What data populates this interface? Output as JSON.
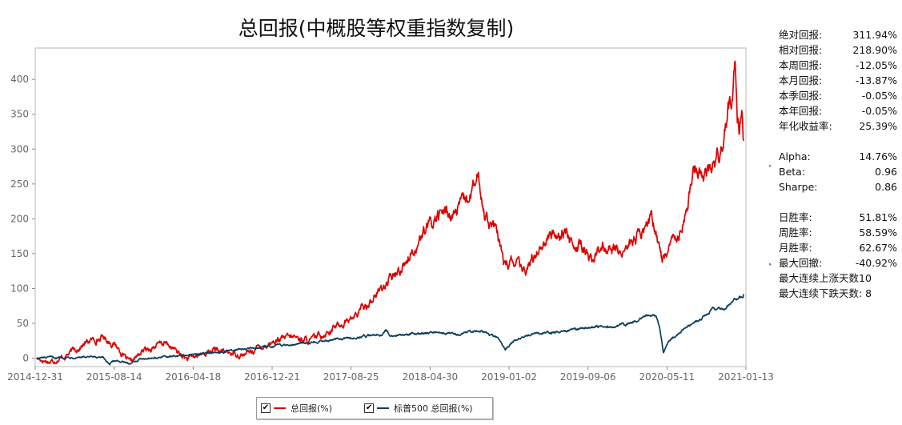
{
  "chart_data": {
    "type": "line",
    "title": "总回报(中概股等权重指数复制)",
    "xlabel": "",
    "ylabel": "",
    "ylim": [
      -12,
      445
    ],
    "yticks": [
      0,
      50,
      100,
      150,
      200,
      250,
      300,
      350,
      400
    ],
    "xticks": [
      "2014-12-31",
      "2015-08-14",
      "2016-04-18",
      "2016-12-21",
      "2017-08-25",
      "2018-04-30",
      "2019-01-02",
      "2019-09-06",
      "2020-05-11",
      "2021-01-13"
    ],
    "grid": false,
    "legend_position": "bottom-center",
    "n_points": 1600,
    "series": [
      {
        "name": "总回报(%)",
        "color": "#dd0000",
        "anchors": [
          [
            0,
            0
          ],
          [
            30,
            -5
          ],
          [
            60,
            2
          ],
          [
            120,
            25
          ],
          [
            150,
            30
          ],
          [
            180,
            18
          ],
          [
            195,
            5
          ],
          [
            210,
            -8
          ],
          [
            240,
            10
          ],
          [
            270,
            18
          ],
          [
            290,
            22
          ],
          [
            320,
            8
          ],
          [
            340,
            -2
          ],
          [
            370,
            5
          ],
          [
            400,
            12
          ],
          [
            430,
            8
          ],
          [
            470,
            5
          ],
          [
            500,
            15
          ],
          [
            540,
            25
          ],
          [
            580,
            30
          ],
          [
            620,
            25
          ],
          [
            660,
            40
          ],
          [
            720,
            60
          ],
          [
            780,
            100
          ],
          [
            820,
            125
          ],
          [
            860,
            165
          ],
          [
            900,
            200
          ],
          [
            920,
            210
          ],
          [
            940,
            205
          ],
          [
            960,
            215
          ],
          [
            985,
            240
          ],
          [
            1000,
            255
          ],
          [
            1010,
            215
          ],
          [
            1040,
            180
          ],
          [
            1060,
            130
          ],
          [
            1085,
            140
          ],
          [
            1100,
            120
          ],
          [
            1120,
            140
          ],
          [
            1140,
            165
          ],
          [
            1170,
            180
          ],
          [
            1200,
            185
          ],
          [
            1215,
            150
          ],
          [
            1230,
            160
          ],
          [
            1260,
            140
          ],
          [
            1280,
            165
          ],
          [
            1300,
            155
          ],
          [
            1320,
            150
          ],
          [
            1350,
            170
          ],
          [
            1370,
            180
          ],
          [
            1390,
            200
          ],
          [
            1405,
            170
          ],
          [
            1415,
            140
          ],
          [
            1430,
            160
          ],
          [
            1450,
            180
          ],
          [
            1470,
            215
          ],
          [
            1490,
            275
          ],
          [
            1510,
            265
          ],
          [
            1530,
            275
          ],
          [
            1550,
            305
          ],
          [
            1565,
            355
          ],
          [
            1575,
            375
          ],
          [
            1580,
            430
          ],
          [
            1585,
            360
          ],
          [
            1590,
            330
          ],
          [
            1595,
            375
          ],
          [
            1599,
            312
          ]
        ],
        "final_value": 311.94
      },
      {
        "name": "标普500 总回报(%)",
        "color": "#0a3d5c",
        "anchors": [
          [
            0,
            0
          ],
          [
            100,
            2
          ],
          [
            150,
            0
          ],
          [
            165,
            -8
          ],
          [
            180,
            -3
          ],
          [
            205,
            -8
          ],
          [
            240,
            0
          ],
          [
            300,
            2
          ],
          [
            400,
            8
          ],
          [
            500,
            15
          ],
          [
            600,
            22
          ],
          [
            700,
            28
          ],
          [
            780,
            35
          ],
          [
            790,
            40
          ],
          [
            800,
            32
          ],
          [
            850,
            35
          ],
          [
            900,
            38
          ],
          [
            950,
            35
          ],
          [
            1000,
            40
          ],
          [
            1040,
            30
          ],
          [
            1060,
            12
          ],
          [
            1080,
            25
          ],
          [
            1120,
            35
          ],
          [
            1200,
            38
          ],
          [
            1250,
            45
          ],
          [
            1300,
            45
          ],
          [
            1350,
            52
          ],
          [
            1380,
            60
          ],
          [
            1400,
            63
          ],
          [
            1410,
            40
          ],
          [
            1418,
            8
          ],
          [
            1430,
            25
          ],
          [
            1460,
            40
          ],
          [
            1500,
            55
          ],
          [
            1530,
            70
          ],
          [
            1560,
            72
          ],
          [
            1580,
            85
          ],
          [
            1599,
            92
          ]
        ],
        "final_value": 92
      }
    ]
  },
  "legend": {
    "items": [
      {
        "label": "总回报(%)",
        "checked": "✔"
      },
      {
        "label": "标普500 总回报(%)",
        "checked": "✔"
      }
    ]
  },
  "stats": {
    "block1": [
      {
        "label": "绝对回报:",
        "value": "311.94%"
      },
      {
        "label": "相对回报:",
        "value": "218.90%"
      },
      {
        "label": "本周回报:",
        "value": "-12.05%"
      },
      {
        "label": "本月回报:",
        "value": "-13.87%"
      },
      {
        "label": "本季回报:",
        "value": "-0.05%"
      },
      {
        "label": "本年回报:",
        "value": "-0.05%"
      },
      {
        "label": "年化收益率:",
        "value": "25.39%"
      }
    ],
    "block2": [
      {
        "label": "Alpha:",
        "value": "14.76%"
      },
      {
        "label": "Beta:",
        "value": "0.96"
      },
      {
        "label": "Sharpe:",
        "value": "0.86"
      }
    ],
    "block3": [
      {
        "label": "日胜率:",
        "value": "51.81%"
      },
      {
        "label": "周胜率:",
        "value": "58.59%"
      },
      {
        "label": "月胜率:",
        "value": "62.67%"
      },
      {
        "label": "最大回撤:",
        "value": "-40.92%"
      }
    ],
    "long1": "最大连续上涨天数10",
    "long2": "最大连续下跌天数: 8"
  }
}
